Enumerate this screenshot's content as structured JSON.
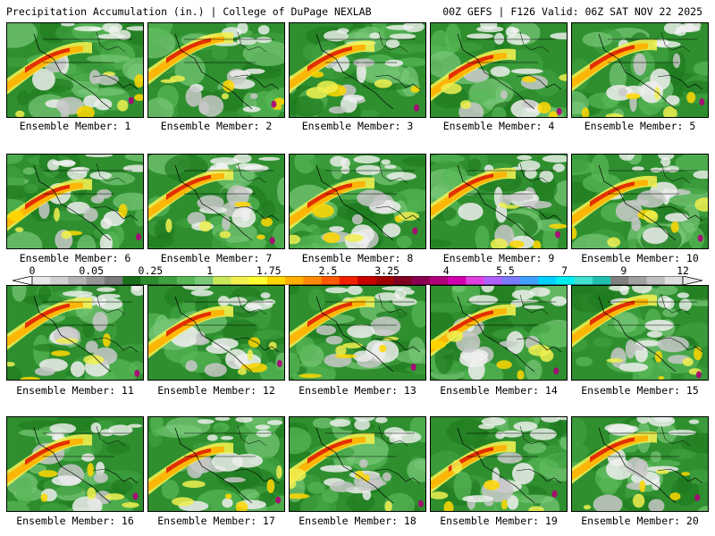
{
  "header": {
    "title": "Precipitation Accumulation (in.) | College of DuPage NEXLAB",
    "valid": "00Z GEFS | F126 Valid: 06Z SAT NOV 22 2025"
  },
  "panels": [
    {
      "member": "Ensemble Member: 1"
    },
    {
      "member": "Ensemble Member: 2"
    },
    {
      "member": "Ensemble Member: 3"
    },
    {
      "member": "Ensemble Member: 4"
    },
    {
      "member": "Ensemble Member: 5"
    },
    {
      "member": "Ensemble Member: 6"
    },
    {
      "member": "Ensemble Member: 7"
    },
    {
      "member": "Ensemble Member: 8"
    },
    {
      "member": "Ensemble Member: 9"
    },
    {
      "member": "Ensemble Member: 10"
    },
    {
      "member": "Ensemble Member: 11"
    },
    {
      "member": "Ensemble Member: 12"
    },
    {
      "member": "Ensemble Member: 13"
    },
    {
      "member": "Ensemble Member: 14"
    },
    {
      "member": "Ensemble Member: 15"
    },
    {
      "member": "Ensemble Member: 16"
    },
    {
      "member": "Ensemble Member: 17"
    },
    {
      "member": "Ensemble Member: 18"
    },
    {
      "member": "Ensemble Member: 19"
    },
    {
      "member": "Ensemble Member: 20"
    }
  ],
  "colorbar": {
    "labels": [
      "0",
      "0.05",
      "0.25",
      "1",
      "1.75",
      "2.5",
      "3.25",
      "4",
      "5.5",
      "7",
      "9",
      "12"
    ],
    "colors": [
      "#e8e8e8",
      "#d0d0d0",
      "#b4b4b4",
      "#969696",
      "#7a7a7a",
      "#1a6e1a",
      "#2e8b2e",
      "#3fa03f",
      "#58b858",
      "#79c879",
      "#c8e85a",
      "#f0f050",
      "#ffff30",
      "#ffd700",
      "#ffb000",
      "#ff8c00",
      "#ff5a00",
      "#f02000",
      "#c80000",
      "#a00000",
      "#800020",
      "#8b0050",
      "#b0007a",
      "#d000b0",
      "#e040e0",
      "#b060ff",
      "#7a7aff",
      "#40a0ff",
      "#00d0ff",
      "#00f0f0",
      "#40e0d0",
      "#20c0b0",
      "#808080",
      "#a0a0a0",
      "#c0c0c0",
      "#e0e0e0"
    ]
  }
}
